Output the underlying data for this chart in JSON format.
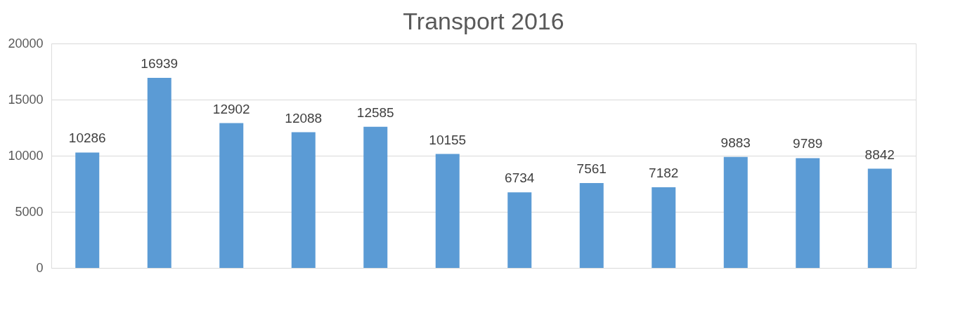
{
  "chart_data": {
    "type": "bar",
    "title": "Transport 2016",
    "categories": [
      null,
      null,
      null,
      null,
      null,
      null,
      null,
      null,
      null,
      null,
      null,
      null
    ],
    "values": [
      10286,
      16939,
      12902,
      12088,
      12585,
      10155,
      6734,
      7561,
      7182,
      9883,
      9789,
      8842
    ],
    "color": "#5b9bd5",
    "ylim": [
      0,
      20000
    ],
    "yticks": [
      0,
      5000,
      10000,
      15000,
      20000
    ],
    "grid": "y",
    "data_labels": true
  }
}
